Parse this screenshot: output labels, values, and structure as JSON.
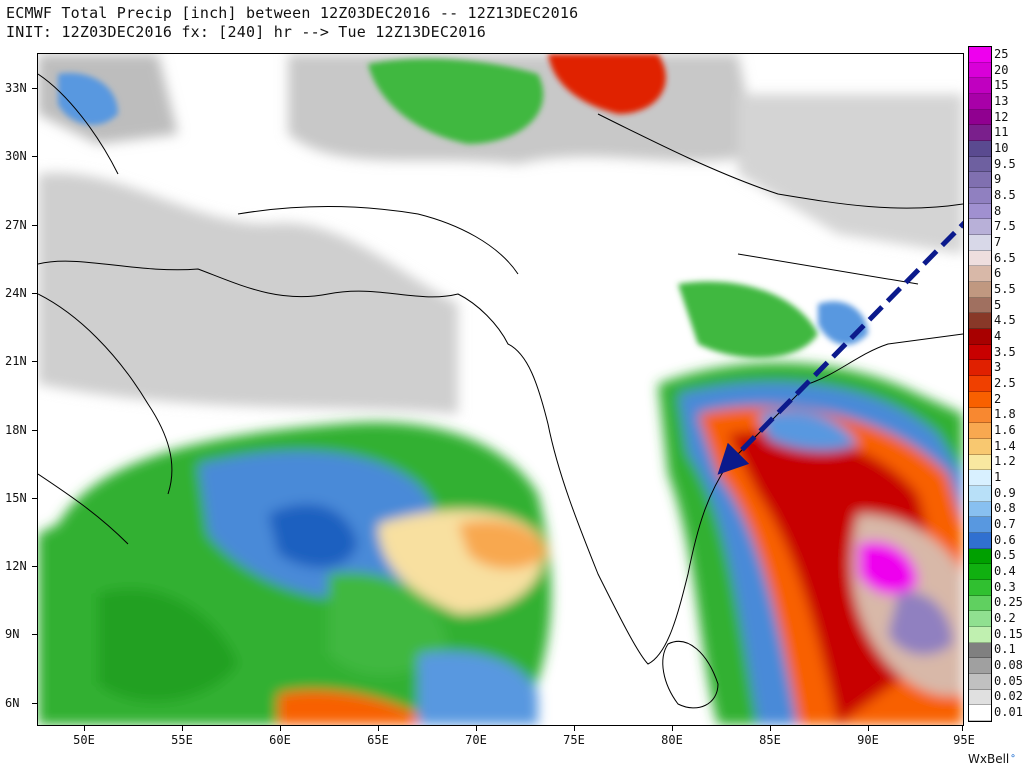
{
  "header": {
    "line1": "ECMWF Total Precip [inch] between 12Z03DEC2016 -- 12Z13DEC2016",
    "line2": "INIT: 12Z03DEC2016 fx: [240] hr --> Tue 12Z13DEC2016"
  },
  "map": {
    "latitude_labels": [
      "33N",
      "30N",
      "27N",
      "24N",
      "21N",
      "18N",
      "15N",
      "12N",
      "9N",
      "6N"
    ],
    "longitude_labels": [
      "50E",
      "55E",
      "60E",
      "65E",
      "70E",
      "75E",
      "80E",
      "85E",
      "90E",
      "95E"
    ],
    "arrow_color": "#0b1a8c",
    "features": [
      "Arabian Sea",
      "Bay of Bengal",
      "Indian subcontinent",
      "Sri Lanka"
    ]
  },
  "legend": {
    "levels": [
      "25",
      "20",
      "15",
      "13",
      "12",
      "11",
      "10",
      "9.5",
      "9",
      "8.5",
      "8",
      "7.5",
      "7",
      "6.5",
      "6",
      "5.5",
      "5",
      "4.5",
      "4",
      "3.5",
      "3",
      "2.5",
      "2",
      "1.8",
      "1.6",
      "1.4",
      "1.2",
      "1",
      "0.9",
      "0.8",
      "0.7",
      "0.6",
      "0.5",
      "0.4",
      "0.3",
      "0.25",
      "0.2",
      "0.15",
      "0.1",
      "0.08",
      "0.05",
      "0.02",
      "0.01"
    ],
    "colors": [
      "#ee00ee",
      "#d800d8",
      "#c000c0",
      "#a800a8",
      "#900090",
      "#7a1f8c",
      "#5a4a90",
      "#6e60a0",
      "#8070b0",
      "#9080c0",
      "#a090d0",
      "#b8b0d8",
      "#d8d8e8",
      "#eedede",
      "#d8b8a8",
      "#c09880",
      "#a07060",
      "#883828",
      "#a80000",
      "#c80000",
      "#e02000",
      "#f04000",
      "#f86000",
      "#f88830",
      "#f8a850",
      "#f8c870",
      "#f8e8a0",
      "#d8f0ff",
      "#b8e0f8",
      "#88c0f0",
      "#5898e0",
      "#3070d0",
      "#00a000",
      "#10b010",
      "#30c030",
      "#60d060",
      "#90e090",
      "#c0f0b0",
      "#808080",
      "#a0a0a0",
      "#c0c0c0",
      "#e0e0e0",
      "#ffffff"
    ]
  },
  "credit": {
    "text": "WxBell"
  }
}
